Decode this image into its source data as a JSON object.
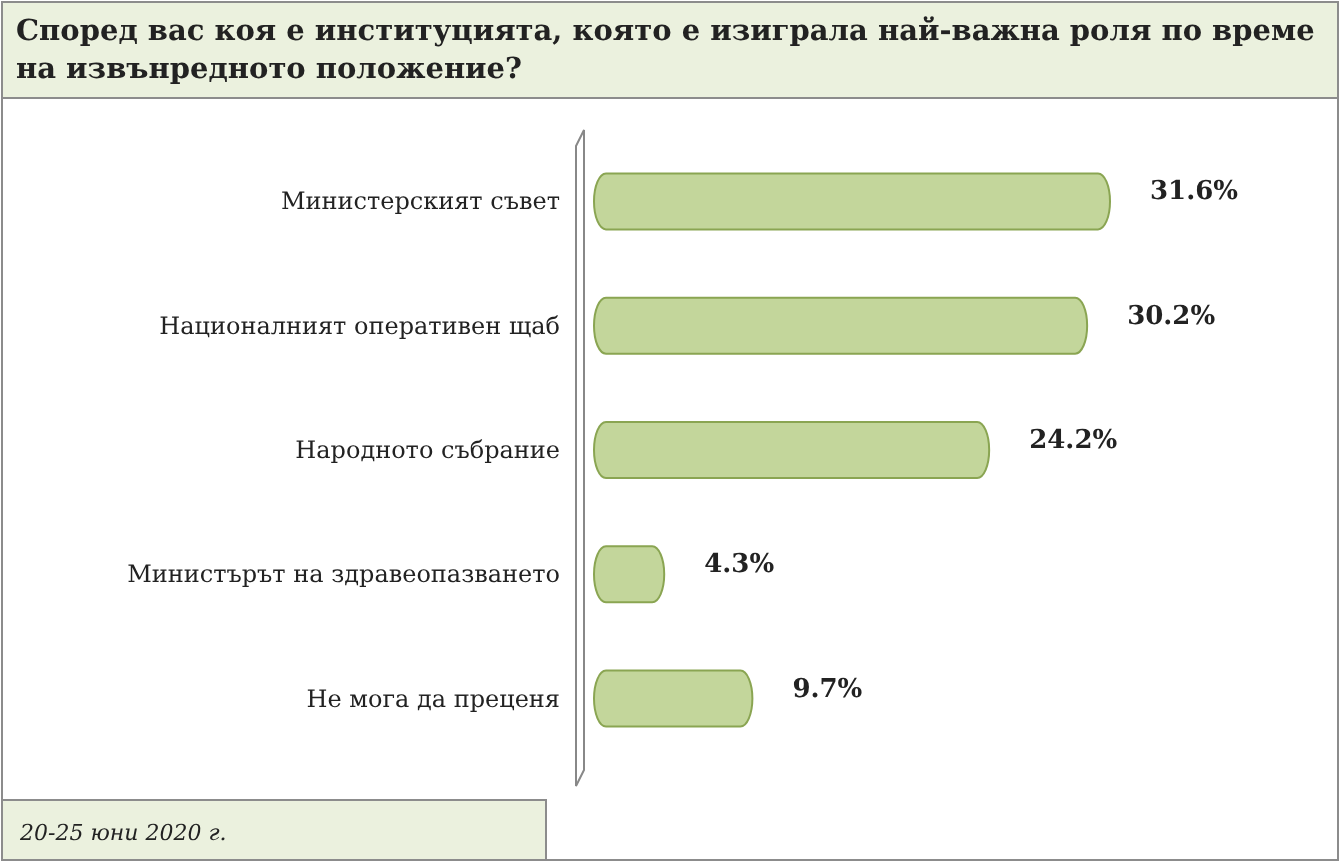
{
  "chart_data": {
    "type": "bar",
    "orientation": "horizontal",
    "title": "Според вас коя е институцията, която е изиграла най-важна роля по време на извънредното положение?",
    "categories": [
      "Министерският съвет",
      "Националният оперативен щаб",
      "Народното събрание",
      "Министърът на здравеопазването",
      "Не мога да преценя"
    ],
    "values": [
      31.6,
      30.2,
      24.2,
      4.3,
      9.7
    ],
    "value_labels": [
      "31.6%",
      "30.2%",
      "24.2%",
      "4.3%",
      "9.7%"
    ],
    "color": "#c3d69b",
    "annotations": [
      "20-25 юни 2020 г."
    ]
  }
}
